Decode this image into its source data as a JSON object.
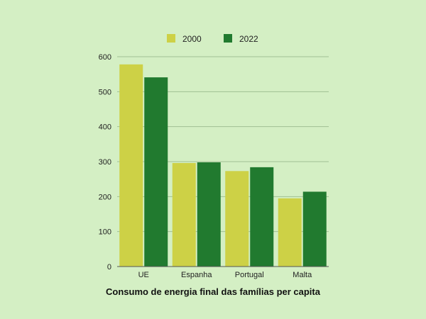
{
  "chart_data": {
    "type": "bar",
    "title": "Consumo de energia final das famílias per capita",
    "xlabel": "",
    "ylabel": "",
    "categories": [
      "UE",
      "Espanha",
      "Portugal",
      "Malta"
    ],
    "series": [
      {
        "name": "2000",
        "values": [
          578,
          296,
          273,
          195
        ],
        "color": "#cdd146"
      },
      {
        "name": "2022",
        "values": [
          541,
          298,
          284,
          214
        ],
        "color": "#217a2f"
      }
    ],
    "ylim": [
      0,
      600
    ],
    "yticks": [
      0,
      100,
      200,
      300,
      400,
      500,
      600
    ],
    "grid": true,
    "legend_position": "top"
  },
  "colors": {
    "background": "#d4efc4",
    "gridline": "#9fbf93",
    "axis": "#555555"
  }
}
